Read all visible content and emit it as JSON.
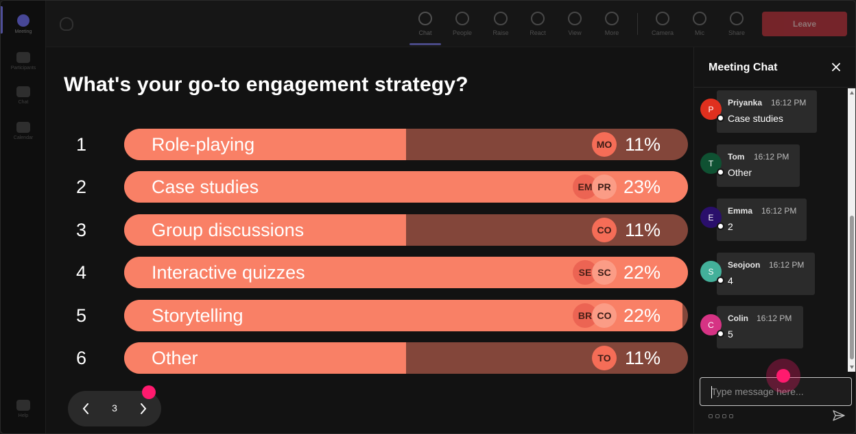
{
  "app": {
    "rail": [
      {
        "label": "Meeting",
        "icon": "meeting-icon"
      },
      {
        "label": "Participants",
        "icon": "people-icon"
      },
      {
        "label": "Chat",
        "icon": "chat-icon"
      },
      {
        "label": "Calendar",
        "icon": "calendar-icon"
      },
      {
        "label": "Help",
        "icon": "help-icon"
      }
    ],
    "toolbar": {
      "buttons": [
        {
          "label": "Chat",
          "icon": "chat-icon"
        },
        {
          "label": "People",
          "icon": "people-icon"
        },
        {
          "label": "Raise",
          "icon": "hand-icon"
        },
        {
          "label": "React",
          "icon": "react-icon"
        },
        {
          "label": "View",
          "icon": "view-icon"
        },
        {
          "label": "More",
          "icon": "more-icon"
        },
        {
          "label": "Camera",
          "icon": "camera-icon"
        },
        {
          "label": "Mic",
          "icon": "mic-icon"
        },
        {
          "label": "Share",
          "icon": "share-icon"
        }
      ],
      "leave_label": "Leave"
    }
  },
  "poll": {
    "question": "What's your go-to engagement strategy?",
    "options": [
      {
        "num": "1",
        "label": "Role-playing",
        "percent": "11%",
        "fill": 0.5,
        "avatars": [
          "MO"
        ]
      },
      {
        "num": "2",
        "label": "Case studies",
        "percent": "23%",
        "fill": 1.0,
        "avatars": [
          "EM",
          "PR"
        ]
      },
      {
        "num": "3",
        "label": "Group discussions",
        "percent": "11%",
        "fill": 0.5,
        "avatars": [
          "CO"
        ]
      },
      {
        "num": "4",
        "label": "Interactive quizzes",
        "percent": "22%",
        "fill": 1.0,
        "avatars": [
          "SE",
          "SC"
        ]
      },
      {
        "num": "5",
        "label": "Storytelling",
        "percent": "22%",
        "fill": 0.99,
        "avatars": [
          "BR",
          "CO"
        ]
      },
      {
        "num": "6",
        "label": "Other",
        "percent": "11%",
        "fill": 0.5,
        "avatars": [
          "TO"
        ]
      }
    ],
    "page": "3"
  },
  "chat": {
    "title": "Meeting Chat",
    "messages": [
      {
        "initial": "P",
        "name": "Priyanka",
        "time": "16:12 PM",
        "text": "Case studies",
        "color": "#e0301e"
      },
      {
        "initial": "T",
        "name": "Tom",
        "time": "16:12 PM",
        "text": "Other",
        "color": "#0f5132"
      },
      {
        "initial": "E",
        "name": "Emma",
        "time": "16:12 PM",
        "text": "2",
        "color": "#2a0f6b"
      },
      {
        "initial": "S",
        "name": "Seojoon",
        "time": "16:12 PM",
        "text": "4",
        "color": "#43b09a"
      },
      {
        "initial": "C",
        "name": "Colin",
        "time": "16:12 PM",
        "text": "5",
        "color": "#d63384"
      }
    ],
    "input_placeholder": "Type message here..."
  },
  "colors": {
    "bar_fill": "#f98066",
    "bar_track": "#83463a",
    "cursor": "#ff1a6e"
  }
}
